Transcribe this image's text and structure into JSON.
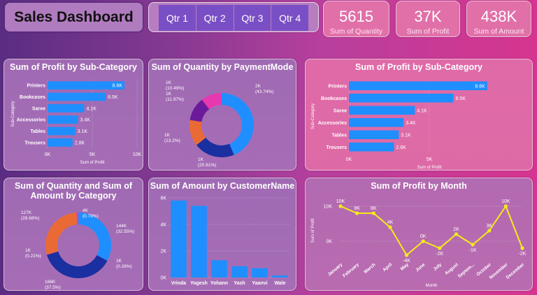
{
  "header": {
    "title": "Sales Dashboard"
  },
  "slicer": {
    "options": [
      "Qtr 1",
      "Qtr 2",
      "Qtr 3",
      "Qtr 4"
    ]
  },
  "kpis": [
    {
      "value": "5615",
      "label": "Sum of Quantity"
    },
    {
      "value": "37K",
      "label": "Sum of Profit"
    },
    {
      "value": "438K",
      "label": "Sum of Amount"
    }
  ],
  "colors": {
    "bar": "#1f8fff",
    "line": "#f5ec17",
    "donut": [
      "#1f8fff",
      "#1a2fa0",
      "#ea6a35",
      "#6a1a9a",
      "#e838b0"
    ]
  },
  "chart_data": [
    {
      "type": "bar",
      "orientation": "horizontal",
      "title": "Sum of Profit by Sub-Category",
      "xlabel": "Sum of Profit",
      "ylabel": "Sub-Category",
      "categories": [
        "Printers",
        "Bookcases",
        "Saree",
        "Accessories",
        "Tables",
        "Trousers"
      ],
      "values": [
        8600,
        6500,
        4100,
        3400,
        3100,
        2800
      ],
      "data_labels": [
        "8.6K",
        "6.5K",
        "4.1K",
        "3.4K",
        "3.1K",
        "2.8K"
      ],
      "xlim": [
        0,
        10000
      ],
      "xticks": [
        "0K",
        "5K",
        "10K"
      ]
    },
    {
      "type": "pie",
      "donut": true,
      "title": "Sum of Quantity by PaymentMode",
      "values": [
        2457,
        1157,
        741,
        672,
        589
      ],
      "data_labels": [
        "2K (43.74%)",
        "1K (20.61%)",
        "1K (13.2%)",
        "1K (11.97%)",
        "1K (10.49%)"
      ]
    },
    {
      "type": "bar",
      "orientation": "horizontal",
      "title": "Sum of Profit by Sub-Category",
      "xlabel": "Sum of Profit",
      "ylabel": "Sub-Category",
      "categories": [
        "Printers",
        "Bookcases",
        "Saree",
        "Accessories",
        "Tables",
        "Trousers"
      ],
      "values": [
        8600,
        6500,
        4100,
        3400,
        3100,
        2800
      ],
      "data_labels": [
        "8.6K",
        "6.5K",
        "4.1K",
        "3.4K",
        "3.1K",
        "2.8K"
      ],
      "xlim": [
        0,
        10000
      ],
      "xticks": [
        "0K",
        "5K"
      ]
    },
    {
      "type": "pie",
      "donut": true,
      "title": "Sum of Quantity and Sum of Amount by Category",
      "values": [
        144000,
        1000,
        166000,
        1000,
        127000,
        4000
      ],
      "colors": [
        "#1f8fff",
        "#1f8fff",
        "#1a2fa0",
        "#6a1a9a",
        "#ea6a35",
        "#e838b0"
      ],
      "data_labels": [
        "144K (32.55%)",
        "1K (0.26%)",
        "166K (37.5%)",
        "1K (0.21%)",
        "127K (28.68%)",
        "4K (0.79%)"
      ]
    },
    {
      "type": "bar",
      "orientation": "vertical",
      "title": "Sum of Amount by CustomerName",
      "categories": [
        "Vrinda",
        "Yogesh",
        "Yohann",
        "Yash",
        "Yaanvi",
        "Wale"
      ],
      "values": [
        5800,
        5400,
        1300,
        850,
        700,
        150
      ],
      "ylim": [
        0,
        6000
      ],
      "yticks": [
        "0K",
        "2K",
        "4K",
        "6K"
      ]
    },
    {
      "type": "line",
      "title": "Sum of Profit by Month",
      "xlabel": "Month",
      "ylabel": "Sum of Profit",
      "categories": [
        "January",
        "February",
        "March",
        "April",
        "May",
        "June",
        "July",
        "August",
        "Septem...",
        "October",
        "November",
        "December"
      ],
      "values": [
        10000,
        8000,
        8000,
        4000,
        -4000,
        0,
        -2000,
        2000,
        -1000,
        3000,
        10000,
        -2000
      ],
      "data_labels": [
        "10K",
        "8K",
        "8K",
        "4K",
        "-4K",
        "0K",
        "-2K",
        "2K",
        "-1K",
        "3K",
        "10K",
        "-2K"
      ],
      "ylim": [
        -5000,
        12000
      ],
      "yticks": [
        "0K",
        "10K"
      ]
    }
  ]
}
